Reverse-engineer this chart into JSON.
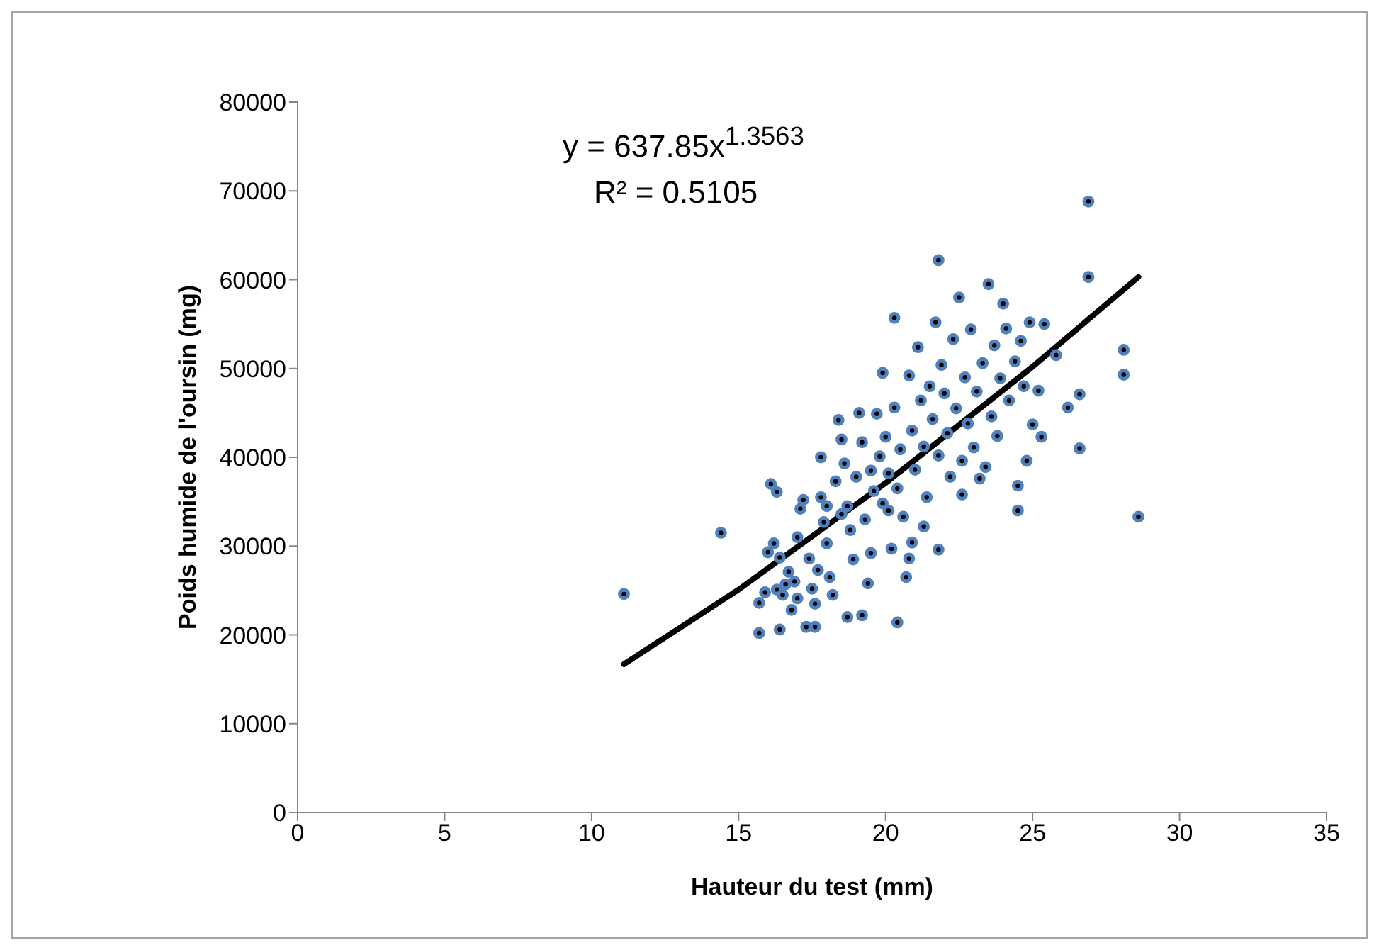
{
  "chart_data": {
    "type": "scatter",
    "xlabel": "Hauteur du test (mm)",
    "ylabel": "Poids humide de l'oursin (mg)",
    "annotations": [
      "y = 637.85x$^{1.3563}$",
      "R² = 0.5105"
    ],
    "xlim": [
      0,
      35
    ],
    "xticks": [
      0,
      5,
      10,
      15,
      20,
      25,
      30,
      35
    ],
    "ylim": [
      0,
      80000
    ],
    "yticks": [
      0,
      10000,
      20000,
      30000,
      40000,
      50000,
      60000,
      70000,
      80000
    ],
    "grid": false,
    "legend": false,
    "marker": "circle",
    "series": [
      {
        "type": "scatter",
        "color": "#4f81bd",
        "x": [
          11.1,
          14.4,
          28.6,
          26.9,
          26.9,
          28.1,
          28.1,
          26.6,
          26.6,
          26.2,
          24.5,
          24.5,
          21.8,
          15.7,
          16.4,
          17.3,
          17.6,
          20.4,
          18.7,
          19.2,
          16.1,
          16.3,
          15.7,
          15.9,
          16.0,
          16.2,
          16.3,
          16.5,
          16.6,
          16.9,
          16.4,
          16.7,
          17.0,
          17.1,
          17.2,
          17.4,
          17.5,
          17.6,
          17.7,
          17.8,
          17.8,
          17.9,
          18.0,
          18.0,
          18.1,
          18.2,
          18.3,
          18.4,
          18.5,
          18.6,
          18.7,
          18.8,
          18.9,
          19.0,
          19.1,
          19.2,
          19.3,
          19.4,
          19.5,
          19.6,
          19.7,
          19.8,
          19.9,
          19.9,
          20.0,
          20.1,
          20.2,
          20.3,
          20.3,
          20.4,
          20.5,
          20.6,
          20.7,
          20.8,
          20.8,
          20.9,
          21.0,
          21.1,
          21.2,
          21.3,
          21.4,
          21.5,
          21.6,
          21.7,
          21.8,
          21.8,
          21.9,
          22.0,
          22.1,
          22.2,
          22.3,
          22.4,
          22.5,
          22.6,
          22.7,
          22.8,
          22.9,
          23.0,
          23.1,
          23.2,
          23.3,
          23.5,
          23.6,
          23.7,
          23.8,
          23.9,
          24.0,
          24.1,
          24.2,
          24.4,
          24.6,
          24.7,
          24.9,
          25.0,
          25.2,
          25.3,
          25.4,
          25.8,
          24.8,
          23.4,
          22.6,
          21.3,
          20.9,
          20.1,
          19.5,
          18.5,
          17.0,
          16.8
        ],
        "values": [
          24600,
          31500,
          33300,
          68800,
          60300,
          52100,
          49300,
          47100,
          41000,
          45600,
          34000,
          36800,
          62200,
          20200,
          20600,
          20900,
          20900,
          21400,
          22000,
          22200,
          37000,
          36100,
          23600,
          24800,
          29300,
          30300,
          25100,
          24500,
          25700,
          26000,
          28700,
          27100,
          31000,
          34200,
          35200,
          28600,
          25200,
          23500,
          27300,
          40000,
          35500,
          32700,
          34500,
          30300,
          26500,
          24500,
          37300,
          44200,
          42000,
          39300,
          34500,
          31800,
          28500,
          37800,
          45000,
          41700,
          33000,
          25800,
          38500,
          36200,
          44900,
          40100,
          34800,
          49500,
          42300,
          38200,
          29700,
          55700,
          45600,
          36500,
          40900,
          33300,
          26500,
          28600,
          49200,
          43000,
          38600,
          52400,
          46400,
          41200,
          35500,
          48000,
          44300,
          55200,
          40200,
          29600,
          50400,
          47200,
          42700,
          37800,
          53300,
          45500,
          58000,
          39600,
          49000,
          43800,
          54400,
          41100,
          47400,
          37600,
          50600,
          59500,
          44600,
          52600,
          42400,
          48900,
          57300,
          54500,
          46400,
          50800,
          53100,
          48000,
          55200,
          43700,
          47500,
          42300,
          55000,
          51500,
          39600,
          38900,
          35800,
          32200,
          30400,
          34000,
          29200,
          33600,
          24100,
          22800
        ]
      },
      {
        "type": "line",
        "color": "#000000",
        "line_style": "solid",
        "marker": "none",
        "x": [
          11.1,
          15,
          20,
          25,
          28.6
        ],
        "values": [
          16700,
          25100,
          37100,
          50200,
          60300
        ]
      }
    ]
  }
}
